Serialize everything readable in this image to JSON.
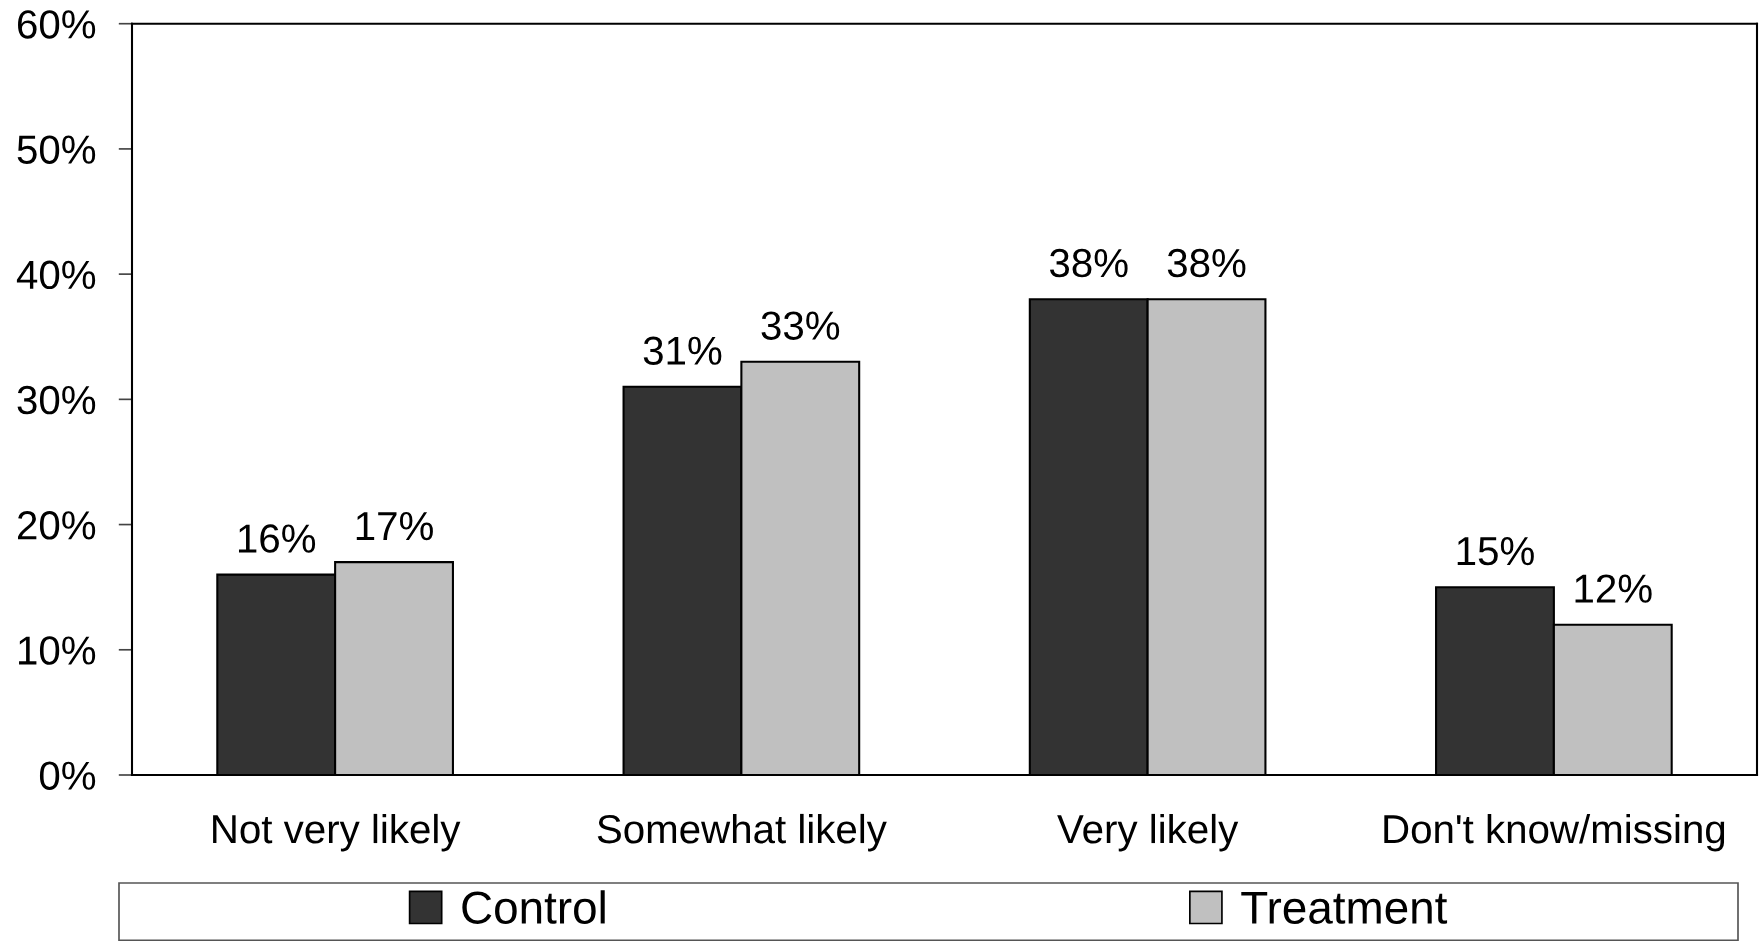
{
  "chart_data": {
    "type": "bar",
    "categories": [
      "Not very likely",
      "Somewhat likely",
      "Very likely",
      "Don't know/missing"
    ],
    "series": [
      {
        "name": "Control",
        "color": "#333333",
        "values": [
          16,
          31,
          38,
          15
        ],
        "value_labels": [
          "16%",
          "31%",
          "38%",
          "15%"
        ]
      },
      {
        "name": "Treatment",
        "color": "#c0c0c0",
        "values": [
          17,
          33,
          38,
          12
        ],
        "value_labels": [
          "17%",
          "33%",
          "38%",
          "12%"
        ]
      }
    ],
    "ylim": [
      0,
      60
    ],
    "yticks": [
      {
        "value": 0,
        "label": "0%"
      },
      {
        "value": 10,
        "label": "10%"
      },
      {
        "value": 20,
        "label": "20%"
      },
      {
        "value": 30,
        "label": "30%"
      },
      {
        "value": 40,
        "label": "40%"
      },
      {
        "value": 50,
        "label": "50%"
      },
      {
        "value": 60,
        "label": "60%"
      }
    ],
    "grid": false,
    "legend": "bottom"
  }
}
